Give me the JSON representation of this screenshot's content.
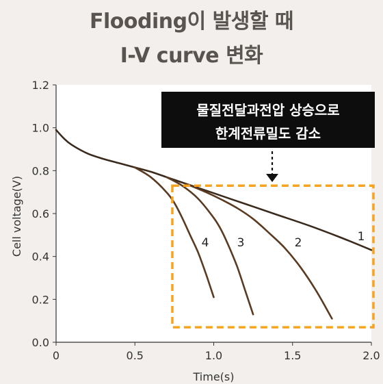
{
  "title": {
    "line1": "Flooding이 발생할 때",
    "line2": "I-V curve 변화"
  },
  "chart_data": {
    "type": "line",
    "xlabel": "Time(s)",
    "ylabel": "Cell voltage(V)",
    "xlim": [
      0,
      2.0
    ],
    "ylim": [
      0,
      1.2
    ],
    "x_ticks": [
      "0",
      "0.5",
      "1.0",
      "1.5",
      "2.0"
    ],
    "y_ticks": [
      "0.0",
      "0.2",
      "0.4",
      "0.6",
      "0.8",
      "1.0",
      "1.2"
    ],
    "grid": false,
    "series": [
      {
        "name": "1",
        "color": "#3a2a1c",
        "x": [
          0,
          0.05,
          0.1,
          0.2,
          0.3,
          0.4,
          0.5,
          0.6,
          0.7,
          0.8,
          0.9,
          1.0,
          1.2,
          1.4,
          1.6,
          1.8,
          2.0
        ],
        "y": [
          0.99,
          0.95,
          0.92,
          0.88,
          0.855,
          0.835,
          0.815,
          0.795,
          0.77,
          0.745,
          0.72,
          0.695,
          0.645,
          0.595,
          0.545,
          0.49,
          0.43
        ]
      },
      {
        "name": "2",
        "color": "#5a3a20",
        "x": [
          0.82,
          0.95,
          1.05,
          1.15,
          1.25,
          1.35,
          1.45,
          1.55,
          1.65,
          1.75
        ],
        "y": [
          0.74,
          0.7,
          0.665,
          0.625,
          0.575,
          0.51,
          0.44,
          0.35,
          0.24,
          0.11
        ]
      },
      {
        "name": "3",
        "color": "#5a3a20",
        "x": [
          0.7,
          0.8,
          0.9,
          1.0,
          1.05,
          1.1,
          1.15,
          1.2,
          1.25
        ],
        "y": [
          0.77,
          0.73,
          0.67,
          0.58,
          0.52,
          0.44,
          0.35,
          0.24,
          0.13
        ]
      },
      {
        "name": "4",
        "color": "#5a3a20",
        "x": [
          0.5,
          0.6,
          0.7,
          0.75,
          0.8,
          0.85,
          0.9,
          0.95,
          1.0
        ],
        "y": [
          0.815,
          0.77,
          0.7,
          0.65,
          0.58,
          0.5,
          0.42,
          0.32,
          0.21
        ]
      }
    ],
    "annotation": {
      "line1": "물질전달과전압 상승으로",
      "line2": "한계전류밀도 감소"
    },
    "highlight_box": {
      "x": [
        0.72,
        2.0
      ],
      "y": [
        0.07,
        0.73
      ],
      "color": "#f5a321"
    }
  }
}
